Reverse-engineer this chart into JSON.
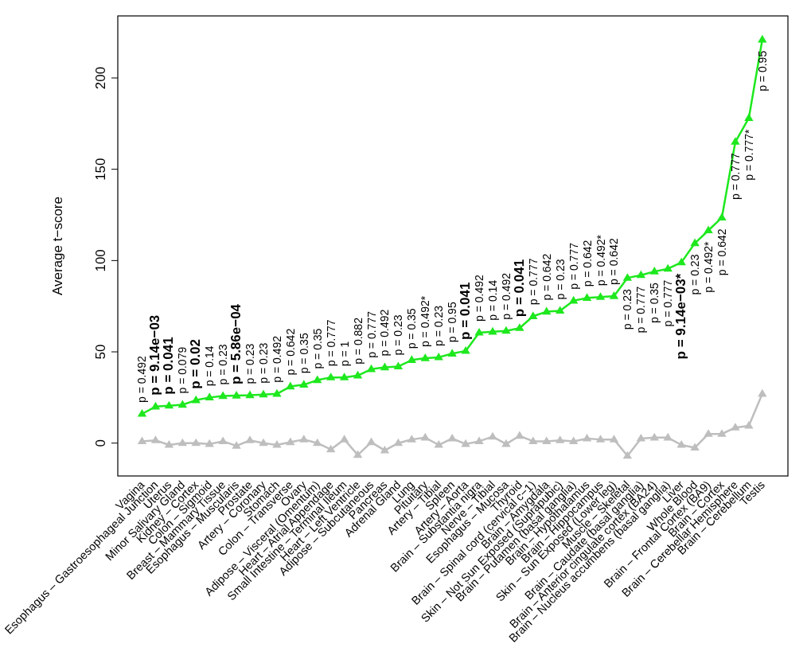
{
  "chart_data": {
    "type": "line",
    "ylabel": "Average t−score",
    "categories": [
      "Vagina",
      "Esophagus – Gastroesophageal Junction",
      "Uterus",
      "Minor Salivary Gland",
      "Kidney – Cortex",
      "Colon – Sigmoid",
      "Breast – Mammary Tissue",
      "Esophagus – Muscularis",
      "Prostate",
      "Artery – Coronary",
      "Stomach",
      "Colon – Transverse",
      "Ovary",
      "Adipose – Visceral (Omentum)",
      "Heart – Atrial Appendage",
      "Small Intestine – Terminal Ileum",
      "Heart – Left Ventricle",
      "Adipose – Subcutaneous",
      "Pancreas",
      "Adrenal Gland",
      "Lung",
      "Pituitary",
      "Artery – Tibial",
      "Spleen",
      "Artery – Aorta",
      "Brain – Substantia nigra",
      "Nerve – Tibial",
      "Esophagus – Mucosa",
      "Thyroid",
      "Brain – Spinal cord (cervical c−1)",
      "Brain – Amygdala",
      "Skin – Not Sun Exposed (Suprapubic)",
      "Brain – Putamen (basal ganglia)",
      "Brain – Hypothalamus",
      "Brain – Hippocampus",
      "Skin – Sun Exposed (Lower leg)",
      "Muscle – Skeletal",
      "Brain – Caudate (basal ganglia)",
      "Brain – Anterior cingulate cortex (BA24)",
      "Brain – Nucleus accumbens (basal ganglia)",
      "Liver",
      "Whole Blood",
      "Brain – Frontal Cortex (BA9)",
      "Brain – Cortex",
      "Brain – Cerebellar Hemisphere",
      "Brain – Cerebellum",
      "Testis"
    ],
    "series": [
      {
        "color": "#bebebe",
        "values": [
          1,
          1.5,
          -1,
          0,
          0,
          -0.5,
          1,
          -1.5,
          1.5,
          0,
          -1,
          0.5,
          2,
          0,
          -3.5,
          2,
          -6.5,
          0.5,
          -4,
          0,
          2,
          3,
          -1,
          2.5,
          -0.5,
          1,
          3.5,
          -0.5,
          4,
          1,
          1,
          1.5,
          1,
          2.5,
          2,
          2,
          -7,
          2.5,
          3,
          3,
          -1,
          -2.5,
          5,
          5,
          8.5,
          9.5,
          27
        ]
      },
      {
        "color": "#1ee81e",
        "values": [
          16,
          20,
          20.5,
          21,
          23.5,
          25,
          25.8,
          26,
          26.2,
          26.6,
          27,
          31,
          32,
          34.5,
          36,
          36,
          37,
          40.5,
          41.5,
          42,
          45.5,
          46.5,
          47,
          49,
          50.5,
          60.5,
          61,
          61.5,
          63,
          69.5,
          72,
          72.5,
          78,
          79.5,
          80,
          80.5,
          90.5,
          92,
          94,
          95.5,
          99,
          109.5,
          116.5,
          123.5,
          165,
          178,
          221
        ]
      }
    ],
    "ylim": [
      -18,
      234
    ],
    "yticks": [
      0,
      50,
      100,
      150,
      200
    ],
    "grid": false,
    "marker": "triangle",
    "line_style": "solid",
    "annotations": [
      "p = 0.492",
      "p = 9.14e−03",
      "p = 0.041",
      "p = 0.079",
      "p = 0.02",
      "p = 0.14",
      "p = 0.23",
      "p = 5.86e−04",
      "p = 0.23",
      "p = 0.23",
      "p = 0.492",
      "p = 0.642",
      "p = 0.35",
      "p = 0.35",
      "p = 0.777",
      "p = 1",
      "p = 0.882",
      "p = 0.777",
      "p = 0.492",
      "p = 0.23",
      "p = 0.35",
      "p = 0.492*",
      "p = 0.23",
      "p = 0.95",
      "p = 0.041",
      "p = 0.492",
      "p = 0.14",
      "p = 0.492",
      "p = 0.041",
      "p = 0.777",
      "p = 0.642",
      "p = 0.23",
      "p = 0.777",
      "p = 0.642",
      "p = 0.492*",
      "p = 0.642",
      "p = 0.23",
      "p = 0.777",
      "p = 0.35",
      "p = 0.777",
      "p = 9.14e−03*",
      "p = 0.23",
      "p = 0.492*",
      "p = 0.642",
      "p = 0.777",
      "p = 0.777*",
      "p = 0.95"
    ]
  }
}
